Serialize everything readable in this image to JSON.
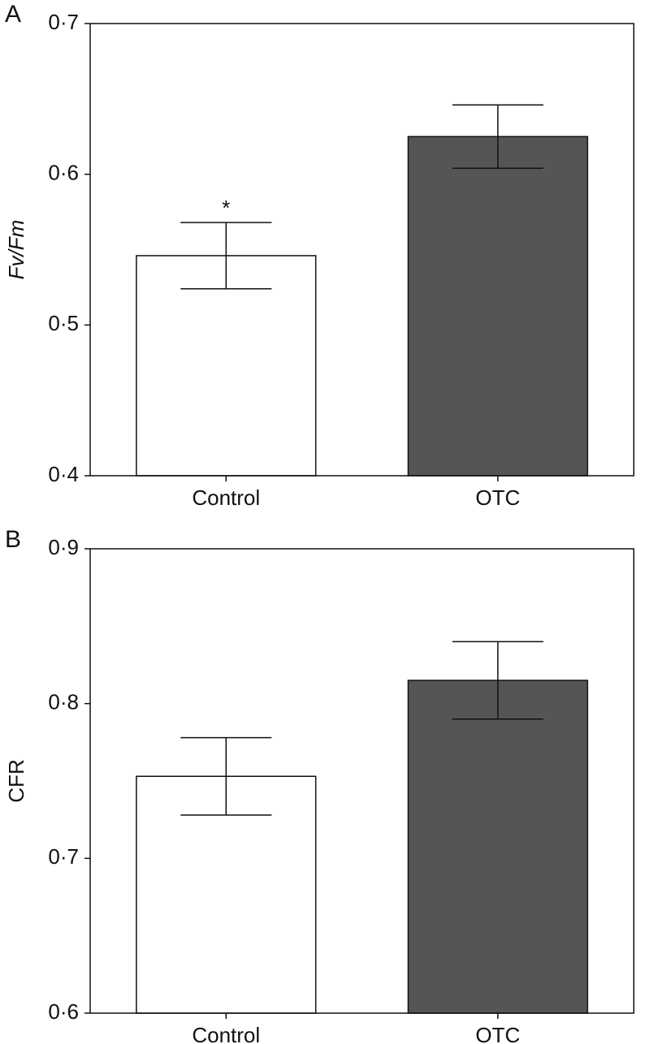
{
  "chart_data": [
    {
      "type": "bar",
      "panel_label": "A",
      "ylabel": "Fv/Fm",
      "categories": [
        "Control",
        "OTC"
      ],
      "values": [
        0.546,
        0.625
      ],
      "errors": [
        0.022,
        0.021
      ],
      "colors": [
        "#ffffff",
        "#555555"
      ],
      "annotation": "*",
      "ylim": [
        0.4,
        0.7
      ],
      "yticks": [
        {
          "value": 0.4,
          "label": "0·4"
        },
        {
          "value": 0.5,
          "label": "0·5"
        },
        {
          "value": 0.6,
          "label": "0·6"
        },
        {
          "value": 0.7,
          "label": "0·7"
        }
      ]
    },
    {
      "type": "bar",
      "panel_label": "B",
      "ylabel": "CFR",
      "categories": [
        "Control",
        "OTC"
      ],
      "values": [
        0.753,
        0.815
      ],
      "errors": [
        0.025,
        0.025
      ],
      "colors": [
        "#ffffff",
        "#555555"
      ],
      "ylim": [
        0.6,
        0.9
      ],
      "yticks": [
        {
          "value": 0.6,
          "label": "0·6"
        },
        {
          "value": 0.7,
          "label": "0·7"
        },
        {
          "value": 0.8,
          "label": "0·8"
        },
        {
          "value": 0.9,
          "label": "0·9"
        }
      ]
    }
  ]
}
